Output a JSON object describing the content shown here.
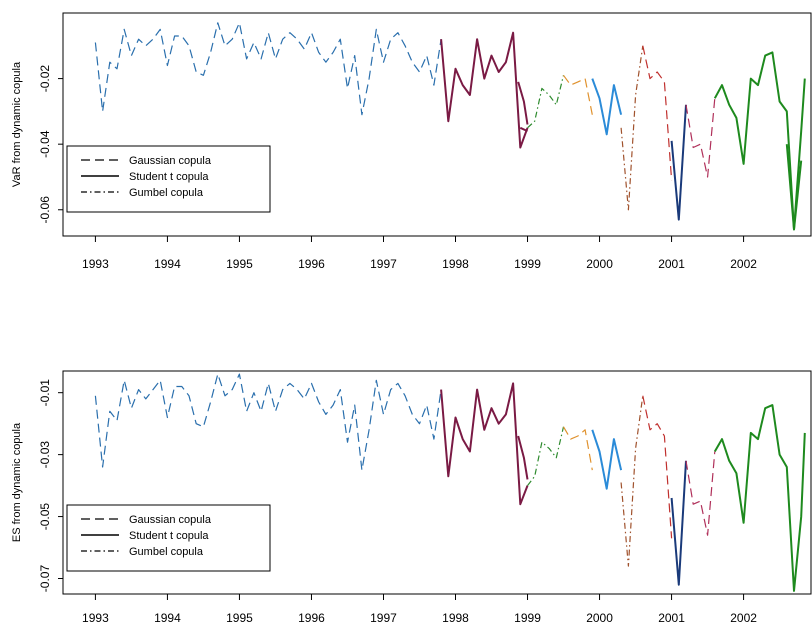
{
  "chart_data": [
    {
      "type": "line",
      "ylabel": "VaR from dynamic copula",
      "ylim": [
        -0.068,
        0.0
      ],
      "y_ticks": [
        -0.02,
        -0.04,
        -0.06
      ],
      "y_tick_labels": [
        "-0.02",
        "-0.04",
        "-0.06"
      ],
      "x_ticks": [
        1993,
        1994,
        1995,
        1996,
        1997,
        1998,
        1999,
        2000,
        2001,
        2002
      ],
      "x_tick_labels": [
        "1993",
        "1994",
        "1995",
        "1996",
        "1997",
        "1998",
        "1999",
        "2000",
        "2001",
        "2002"
      ],
      "xlim": [
        1992.55,
        2002.95
      ],
      "legend": {
        "placement": "bottom-left",
        "entries": [
          {
            "label": "Gaussian copula",
            "style": "dashed"
          },
          {
            "label": "Student t copula",
            "style": "solid"
          },
          {
            "label": "Gumbel copula",
            "style": "dotdash"
          }
        ]
      },
      "segments": [
        {
          "copula": "Gaussian",
          "style": "dashed",
          "color": "#2a6fad",
          "x": [
            1993.0,
            1993.1,
            1993.2,
            1993.3,
            1993.4,
            1993.5,
            1993.6,
            1993.7,
            1993.8,
            1993.9,
            1994.0,
            1994.1,
            1994.2,
            1994.3,
            1994.4,
            1994.5,
            1994.6,
            1994.7,
            1994.8,
            1994.9,
            1995.0,
            1995.1,
            1995.2,
            1995.3,
            1995.4,
            1995.5,
            1995.6,
            1995.7,
            1995.8,
            1995.9,
            1996.0,
            1996.1,
            1996.2,
            1996.3,
            1996.4,
            1996.5,
            1996.6,
            1996.7,
            1996.8,
            1996.9,
            1997.0,
            1997.1,
            1997.2,
            1997.3,
            1997.4,
            1997.5,
            1997.6,
            1997.7,
            1997.8
          ],
          "y": [
            -0.009,
            -0.03,
            -0.015,
            -0.017,
            -0.005,
            -0.013,
            -0.008,
            -0.01,
            -0.008,
            -0.005,
            -0.016,
            -0.007,
            -0.007,
            -0.01,
            -0.018,
            -0.019,
            -0.012,
            -0.003,
            -0.01,
            -0.008,
            -0.003,
            -0.014,
            -0.009,
            -0.014,
            -0.006,
            -0.014,
            -0.008,
            -0.006,
            -0.008,
            -0.011,
            -0.006,
            -0.012,
            -0.015,
            -0.012,
            -0.008,
            -0.023,
            -0.013,
            -0.031,
            -0.02,
            -0.005,
            -0.015,
            -0.008,
            -0.006,
            -0.01,
            -0.015,
            -0.018,
            -0.013,
            -0.022,
            -0.008
          ]
        },
        {
          "copula": "Student t",
          "style": "solid",
          "color": "#7a1a44",
          "x": [
            1997.8,
            1997.9,
            1998.0,
            1998.1,
            1998.2,
            1998.3,
            1998.4,
            1998.5,
            1998.6,
            1998.7,
            1998.8,
            1998.9,
            1999.0
          ],
          "y": [
            -0.008,
            -0.033,
            -0.017,
            -0.022,
            -0.025,
            -0.008,
            -0.02,
            -0.013,
            -0.018,
            -0.015,
            -0.006,
            -0.041,
            -0.035
          ]
        },
        {
          "copula": "Student t",
          "style": "solid",
          "color": "#7a1a44",
          "x": [
            1998.9,
            1999.0
          ],
          "y": [
            -0.035,
            -0.036
          ]
        },
        {
          "copula": "Student t",
          "style": "solid",
          "color": "#7a1a44",
          "x": [
            1998.87,
            1998.95,
            1999.0
          ],
          "y": [
            -0.021,
            -0.027,
            -0.034
          ]
        },
        {
          "copula": "Gumbel",
          "style": "dotdash",
          "color": "#2e8b2e",
          "x": [
            1999.0,
            1999.1,
            1999.2,
            1999.3,
            1999.4,
            1999.5
          ],
          "y": [
            -0.035,
            -0.033,
            -0.023,
            -0.025,
            -0.028,
            -0.019
          ]
        },
        {
          "copula": "Gaussian",
          "style": "dashed",
          "color": "#e0922e",
          "x": [
            1999.5,
            1999.6,
            1999.7,
            1999.8,
            1999.9
          ],
          "y": [
            -0.019,
            -0.022,
            -0.021,
            -0.02,
            -0.031
          ]
        },
        {
          "copula": "Student t",
          "style": "solid",
          "color": "#2b8bd8",
          "x": [
            1999.9,
            2000.0,
            2000.1,
            2000.2,
            2000.3
          ],
          "y": [
            -0.02,
            -0.026,
            -0.037,
            -0.022,
            -0.031
          ]
        },
        {
          "copula": "Gumbel",
          "style": "dotdash",
          "color": "#a0522d",
          "x": [
            2000.3,
            2000.4,
            2000.5,
            2000.6
          ],
          "y": [
            -0.035,
            -0.06,
            -0.025,
            -0.01
          ]
        },
        {
          "copula": "Gaussian",
          "style": "dashed",
          "color": "#c0302e",
          "x": [
            2000.6,
            2000.7,
            2000.8,
            2000.9,
            2001.0
          ],
          "y": [
            -0.01,
            -0.02,
            -0.018,
            -0.021,
            -0.051
          ]
        },
        {
          "copula": "Student t",
          "style": "solid",
          "color": "#1a3a7a",
          "x": [
            2001.0,
            2001.1,
            2001.2
          ],
          "y": [
            -0.039,
            -0.063,
            -0.028
          ]
        },
        {
          "copula": "Gaussian",
          "style": "dashed",
          "color": "#b0305a",
          "x": [
            2001.2,
            2001.3,
            2001.4,
            2001.5,
            2001.6
          ],
          "y": [
            -0.028,
            -0.041,
            -0.04,
            -0.05,
            -0.026
          ]
        },
        {
          "copula": "Student t",
          "style": "solid",
          "color": "#1e8a1e",
          "x": [
            2001.6,
            2001.7,
            2001.8,
            2001.9,
            2002.0,
            2002.1,
            2002.2,
            2002.3,
            2002.4,
            2002.5,
            2002.6,
            2002.7,
            2002.8
          ],
          "y": [
            -0.026,
            -0.022,
            -0.028,
            -0.032,
            -0.046,
            -0.02,
            -0.022,
            -0.013,
            -0.012,
            -0.027,
            -0.03,
            -0.066,
            -0.045
          ]
        },
        {
          "copula": "Student t",
          "style": "solid",
          "color": "#1e8a1e",
          "x": [
            2002.6,
            2002.7,
            2002.8,
            2002.85
          ],
          "y": [
            -0.04,
            -0.066,
            -0.036,
            -0.02
          ]
        }
      ]
    },
    {
      "type": "line",
      "ylabel": "ES from dynamic copula",
      "ylim": [
        -0.075,
        -0.003
      ],
      "y_ticks": [
        -0.01,
        -0.03,
        -0.05,
        -0.07
      ],
      "y_tick_labels": [
        "-0.01",
        "-0.03",
        "-0.05",
        "-0.07"
      ],
      "x_ticks": [
        1993,
        1994,
        1995,
        1996,
        1997,
        1998,
        1999,
        2000,
        2001,
        2002
      ],
      "x_tick_labels": [
        "1993",
        "1994",
        "1995",
        "1996",
        "1997",
        "1998",
        "1999",
        "2000",
        "2001",
        "2002"
      ],
      "xlim": [
        1992.55,
        2002.95
      ],
      "legend": {
        "placement": "bottom-left",
        "entries": [
          {
            "label": "Gaussian copula",
            "style": "dashed"
          },
          {
            "label": "Student t copula",
            "style": "solid"
          },
          {
            "label": "Gumbel copula",
            "style": "dotdash"
          }
        ]
      },
      "segments": [
        {
          "copula": "Gaussian",
          "style": "dashed",
          "color": "#2a6fad",
          "x": [
            1993.0,
            1993.1,
            1993.2,
            1993.3,
            1993.4,
            1993.5,
            1993.6,
            1993.7,
            1993.8,
            1993.9,
            1994.0,
            1994.1,
            1994.2,
            1994.3,
            1994.4,
            1994.5,
            1994.6,
            1994.7,
            1994.8,
            1994.9,
            1995.0,
            1995.1,
            1995.2,
            1995.3,
            1995.4,
            1995.5,
            1995.6,
            1995.7,
            1995.8,
            1995.9,
            1996.0,
            1996.1,
            1996.2,
            1996.3,
            1996.4,
            1996.5,
            1996.6,
            1996.7,
            1996.8,
            1996.9,
            1997.0,
            1997.1,
            1997.2,
            1997.3,
            1997.4,
            1997.5,
            1997.6,
            1997.7,
            1997.8
          ],
          "y": [
            -0.011,
            -0.034,
            -0.016,
            -0.019,
            -0.006,
            -0.015,
            -0.009,
            -0.012,
            -0.009,
            -0.006,
            -0.018,
            -0.008,
            -0.008,
            -0.011,
            -0.02,
            -0.021,
            -0.013,
            -0.004,
            -0.011,
            -0.009,
            -0.004,
            -0.016,
            -0.01,
            -0.016,
            -0.007,
            -0.016,
            -0.009,
            -0.007,
            -0.009,
            -0.012,
            -0.007,
            -0.013,
            -0.017,
            -0.014,
            -0.009,
            -0.026,
            -0.014,
            -0.035,
            -0.022,
            -0.006,
            -0.017,
            -0.009,
            -0.007,
            -0.011,
            -0.017,
            -0.02,
            -0.014,
            -0.025,
            -0.009
          ]
        },
        {
          "copula": "Student t",
          "style": "solid",
          "color": "#7a1a44",
          "x": [
            1997.8,
            1997.9,
            1998.0,
            1998.1,
            1998.2,
            1998.3,
            1998.4,
            1998.5,
            1998.6,
            1998.7,
            1998.8,
            1998.9,
            1999.0
          ],
          "y": [
            -0.009,
            -0.037,
            -0.018,
            -0.025,
            -0.029,
            -0.009,
            -0.022,
            -0.015,
            -0.02,
            -0.017,
            -0.007,
            -0.046,
            -0.04
          ]
        },
        {
          "copula": "Student t",
          "style": "solid",
          "color": "#7a1a44",
          "x": [
            1998.87,
            1998.95,
            1999.0
          ],
          "y": [
            -0.024,
            -0.031,
            -0.038
          ]
        },
        {
          "copula": "Gumbel",
          "style": "dotdash",
          "color": "#2e8b2e",
          "x": [
            1999.0,
            1999.1,
            1999.2,
            1999.3,
            1999.4,
            1999.5
          ],
          "y": [
            -0.04,
            -0.037,
            -0.026,
            -0.028,
            -0.031,
            -0.021
          ]
        },
        {
          "copula": "Gaussian",
          "style": "dashed",
          "color": "#e0922e",
          "x": [
            1999.5,
            1999.6,
            1999.7,
            1999.8,
            1999.9
          ],
          "y": [
            -0.021,
            -0.025,
            -0.024,
            -0.022,
            -0.035
          ]
        },
        {
          "copula": "Student t",
          "style": "solid",
          "color": "#2b8bd8",
          "x": [
            1999.9,
            2000.0,
            2000.1,
            2000.2,
            2000.3
          ],
          "y": [
            -0.022,
            -0.029,
            -0.041,
            -0.025,
            -0.035
          ]
        },
        {
          "copula": "Gumbel",
          "style": "dotdash",
          "color": "#a0522d",
          "x": [
            2000.3,
            2000.4,
            2000.5,
            2000.6
          ],
          "y": [
            -0.039,
            -0.066,
            -0.028,
            -0.011
          ]
        },
        {
          "copula": "Gaussian",
          "style": "dashed",
          "color": "#c0302e",
          "x": [
            2000.6,
            2000.7,
            2000.8,
            2000.9,
            2001.0
          ],
          "y": [
            -0.011,
            -0.022,
            -0.02,
            -0.024,
            -0.057
          ]
        },
        {
          "copula": "Student t",
          "style": "solid",
          "color": "#1a3a7a",
          "x": [
            2001.0,
            2001.1,
            2001.2
          ],
          "y": [
            -0.044,
            -0.072,
            -0.032
          ]
        },
        {
          "copula": "Gaussian",
          "style": "dashed",
          "color": "#b0305a",
          "x": [
            2001.2,
            2001.3,
            2001.4,
            2001.5,
            2001.6
          ],
          "y": [
            -0.032,
            -0.046,
            -0.045,
            -0.056,
            -0.029
          ]
        },
        {
          "copula": "Student t",
          "style": "solid",
          "color": "#1e8a1e",
          "x": [
            2001.6,
            2001.7,
            2001.8,
            2001.9,
            2002.0,
            2002.1,
            2002.2,
            2002.3,
            2002.4,
            2002.5,
            2002.6,
            2002.7,
            2002.8,
            2002.85
          ],
          "y": [
            -0.029,
            -0.025,
            -0.032,
            -0.036,
            -0.052,
            -0.023,
            -0.025,
            -0.015,
            -0.014,
            -0.03,
            -0.034,
            -0.074,
            -0.05,
            -0.023
          ]
        }
      ]
    }
  ]
}
